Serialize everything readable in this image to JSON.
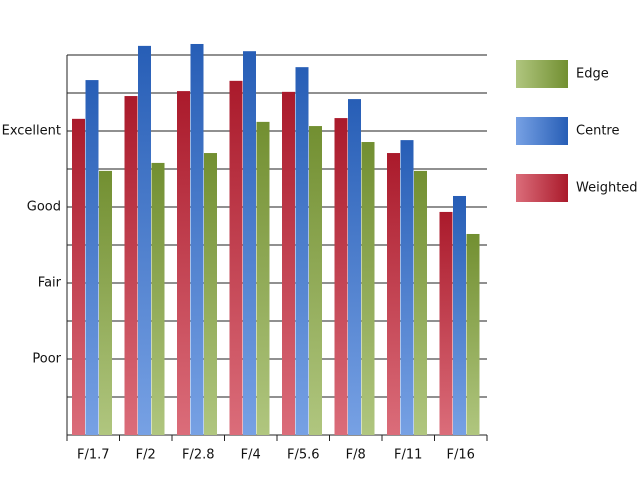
{
  "chart_data": {
    "type": "bar",
    "categories": [
      "F/1.7",
      "F/2",
      "F/2.8",
      "F/4",
      "F/5.6",
      "F/8",
      "F/11",
      "F/16"
    ],
    "series": [
      {
        "name": "Weighted",
        "color": "#c81e32",
        "values": [
          8.32,
          8.92,
          9.05,
          9.32,
          9.03,
          8.34,
          7.42,
          5.87
        ]
      },
      {
        "name": "Centre",
        "color": "#2e6fd6",
        "values": [
          9.34,
          10.24,
          10.29,
          10.1,
          9.68,
          8.84,
          7.76,
          6.29
        ]
      },
      {
        "name": "Edge",
        "color": "#86a83a",
        "values": [
          6.95,
          7.16,
          7.42,
          8.24,
          8.13,
          7.71,
          6.95,
          5.29
        ]
      }
    ],
    "ylim": [
      0,
      10.5
    ],
    "yticks": [
      {
        "value": 1,
        "label": null
      },
      {
        "value": 2,
        "label": "Poor"
      },
      {
        "value": 3,
        "label": null
      },
      {
        "value": 4,
        "label": "Fair"
      },
      {
        "value": 5,
        "label": null
      },
      {
        "value": 6,
        "label": "Good"
      },
      {
        "value": 7,
        "label": null
      },
      {
        "value": 8,
        "label": "Excellent"
      },
      {
        "value": 9,
        "label": null
      },
      {
        "value": 10,
        "label": null
      }
    ],
    "grid": true,
    "legend": "right"
  }
}
